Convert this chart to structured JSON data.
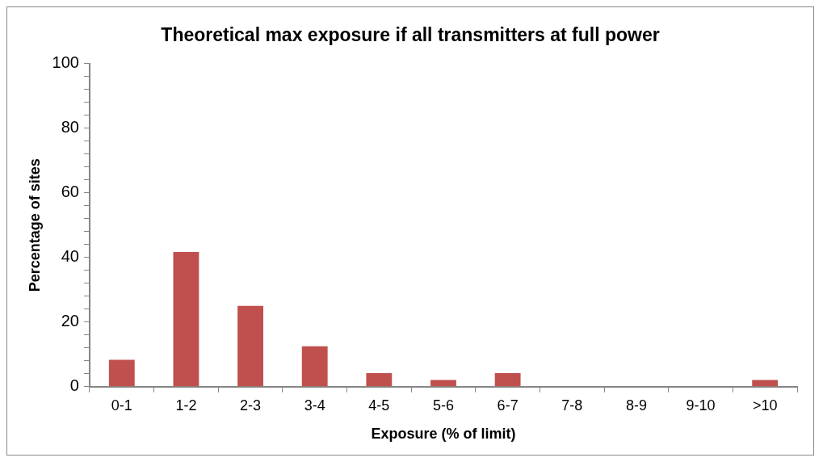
{
  "chart_data": {
    "type": "bar",
    "title": "Theoretical max exposure if all transmitters at full power",
    "xlabel": "Exposure (% of limit)",
    "ylabel": "Percentage of sites",
    "categories": [
      "0-1",
      "1-2",
      "2-3",
      "3-4",
      "4-5",
      "5-6",
      "6-7",
      "7-8",
      "8-9",
      "9-10",
      ">10"
    ],
    "values": [
      8.3,
      41.7,
      25,
      12.5,
      4.2,
      2.1,
      4.2,
      0,
      0,
      0,
      2.1
    ],
    "color": "#c0504d",
    "ylim": [
      0,
      100
    ],
    "yticks": [
      0,
      {
        "value": 4,
        "label": null
      },
      {
        "value": 8,
        "label": null
      },
      {
        "value": 12,
        "label": null
      },
      {
        "value": 16,
        "label": null
      },
      20,
      {
        "value": 24,
        "label": null
      },
      {
        "value": 28,
        "label": null
      },
      {
        "value": 32,
        "label": null
      },
      {
        "value": 36,
        "label": null
      },
      40,
      {
        "value": 44,
        "label": null
      },
      {
        "value": 48,
        "label": null
      },
      {
        "value": 52,
        "label": null
      },
      {
        "value": 56,
        "label": null
      },
      60,
      {
        "value": 64,
        "label": null
      },
      {
        "value": 68,
        "label": null
      },
      {
        "value": 72,
        "label": null
      },
      {
        "value": 76,
        "label": null
      },
      80,
      {
        "value": 84,
        "label": null
      },
      {
        "value": 88,
        "label": null
      },
      {
        "value": 92,
        "label": null
      },
      {
        "value": 96,
        "label": null
      },
      100
    ],
    "grid": false,
    "legend": false
  }
}
